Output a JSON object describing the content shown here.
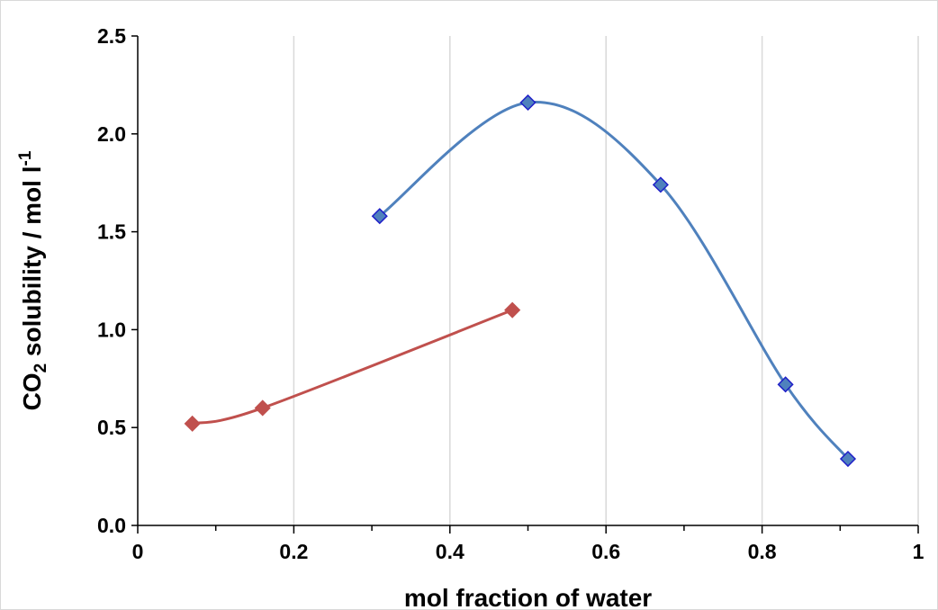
{
  "chart_data": {
    "type": "scatter",
    "title": "",
    "xlabel": "mol fraction of water",
    "ylabel": {
      "main": "CO",
      "sub": "2",
      "rest": " solubility / mol l",
      "sup": "-1"
    },
    "xlim": [
      0,
      1
    ],
    "ylim": [
      0,
      2.5
    ],
    "x_ticks": [
      {
        "value": 0,
        "label": "0"
      },
      {
        "value": 0.2,
        "label": "0.2"
      },
      {
        "value": 0.4,
        "label": "0.4"
      },
      {
        "value": 0.6,
        "label": "0.6"
      },
      {
        "value": 0.8,
        "label": "0.8"
      },
      {
        "value": 1,
        "label": "1"
      }
    ],
    "x_minor_step": 0.1,
    "y_ticks": [
      {
        "value": 0.0,
        "label": "0.0"
      },
      {
        "value": 0.5,
        "label": "0.5"
      },
      {
        "value": 1.0,
        "label": "1.0"
      },
      {
        "value": 1.5,
        "label": "1.5"
      },
      {
        "value": 2.0,
        "label": "2.0"
      },
      {
        "value": 2.5,
        "label": "2.5"
      }
    ],
    "grid": "vertical",
    "legend": "none",
    "series": [
      {
        "color": "#4f81bd",
        "marker_fill": "#4f81bd",
        "marker_stroke": "#1f1fc8",
        "line": "smooth",
        "points": [
          {
            "x": 0.31,
            "y": 1.58
          },
          {
            "x": 0.5,
            "y": 2.16
          },
          {
            "x": 0.67,
            "y": 1.74
          },
          {
            "x": 0.83,
            "y": 0.72
          },
          {
            "x": 0.91,
            "y": 0.34
          }
        ]
      },
      {
        "color": "#c0504d",
        "marker_fill": "#c0504d",
        "marker_stroke": "#c0504d",
        "line": "smooth",
        "points": [
          {
            "x": 0.07,
            "y": 0.52
          },
          {
            "x": 0.16,
            "y": 0.6
          },
          {
            "x": 0.48,
            "y": 1.1
          }
        ]
      }
    ]
  }
}
